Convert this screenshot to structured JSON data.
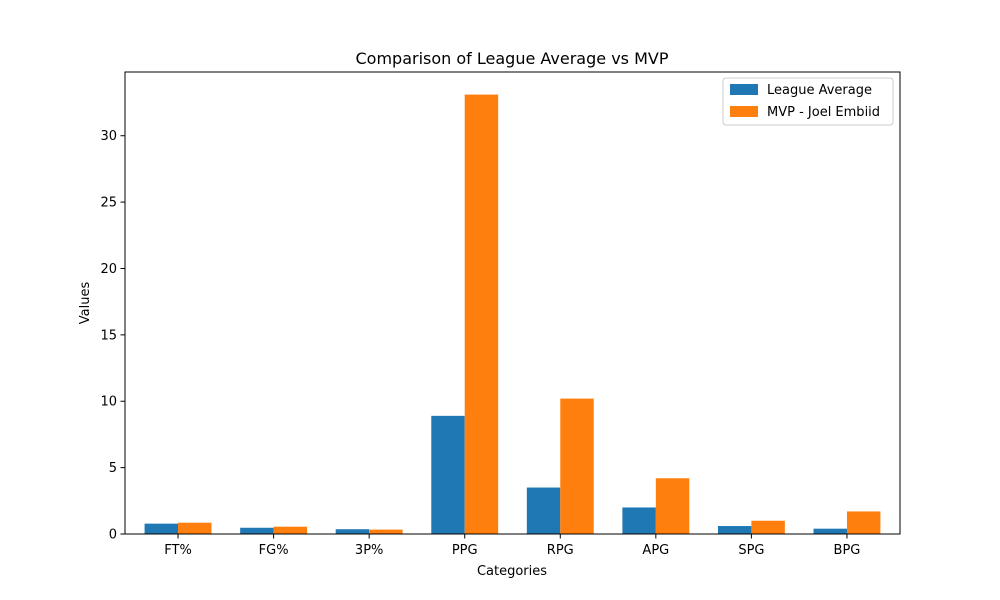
{
  "chart_data": {
    "type": "bar",
    "title": "Comparison of League Average vs MVP",
    "xlabel": "Categories",
    "ylabel": "Values",
    "categories": [
      "FT%",
      "FG%",
      "3P%",
      "PPG",
      "RPG",
      "APG",
      "SPG",
      "BPG"
    ],
    "series": [
      {
        "name": "League Average",
        "color": "#1f77b4",
        "values": [
          0.78,
          0.47,
          0.36,
          8.9,
          3.5,
          2.0,
          0.6,
          0.4
        ]
      },
      {
        "name": "MVP - Joel Embiid",
        "color": "#ff7f0e",
        "values": [
          0.85,
          0.55,
          0.33,
          33.1,
          10.2,
          4.2,
          1.0,
          1.7
        ]
      }
    ],
    "ylim": [
      0,
      34.8
    ],
    "yticks": [
      "0",
      "5",
      "10",
      "15",
      "20",
      "25",
      "30"
    ],
    "grid": false,
    "legend_position": "top-right"
  }
}
